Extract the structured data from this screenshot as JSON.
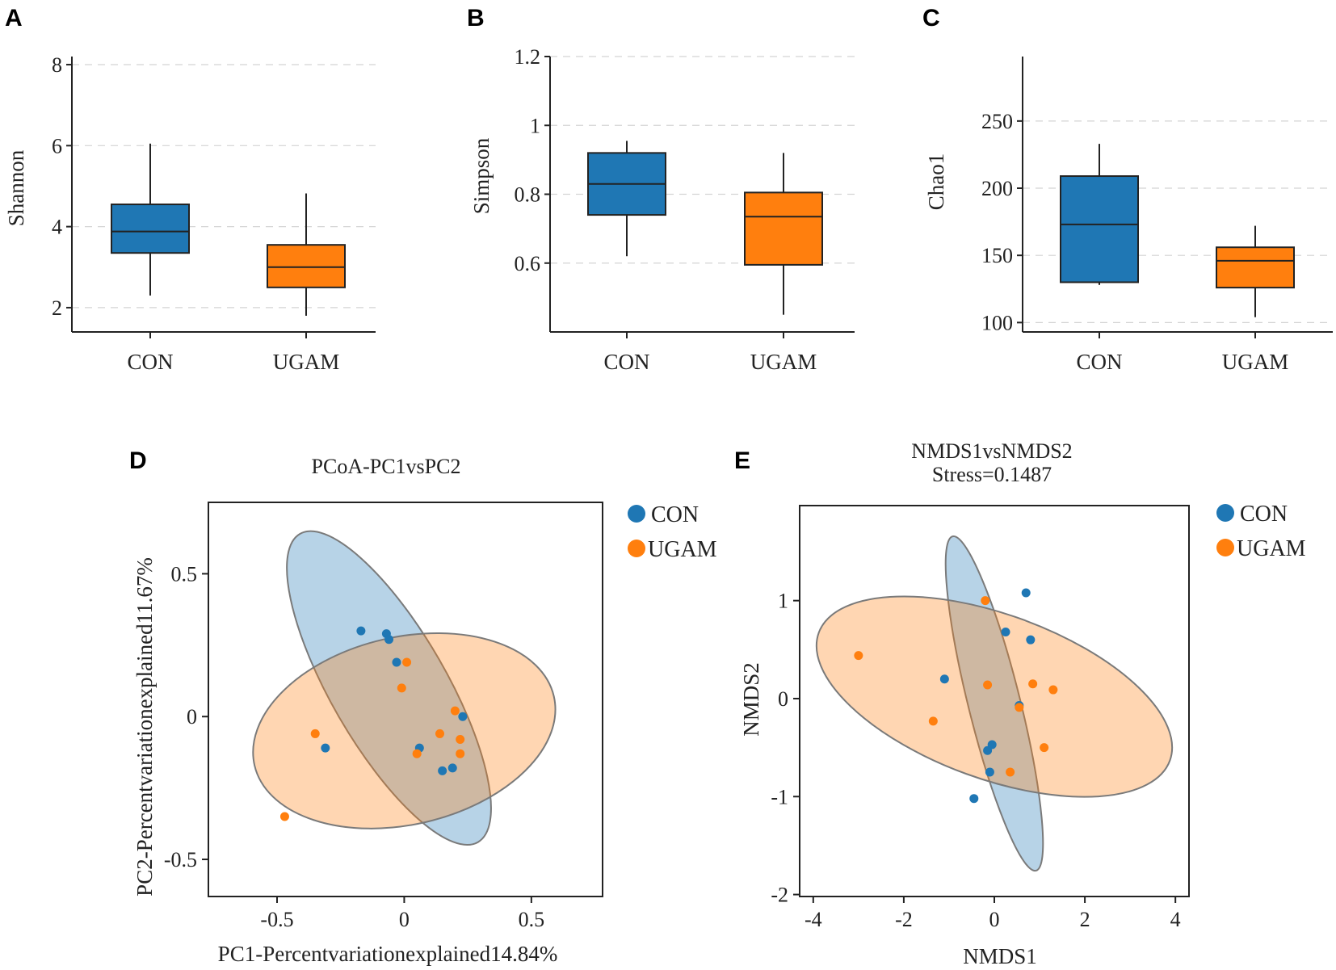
{
  "colors": {
    "con": "#1f77b4",
    "ugam": "#ff7f0e",
    "axis": "#222222",
    "grid": "#d4d4d4"
  },
  "chart_data": [
    {
      "panel": "A",
      "type": "box",
      "ylabel": "Shannon",
      "categories": [
        "CON",
        "UGAM"
      ],
      "ylim": [
        1.4,
        8.2
      ],
      "yticks": [
        2,
        4,
        6,
        8
      ],
      "boxes": [
        {
          "group": "CON",
          "min": 2.3,
          "q1": 3.35,
          "median": 3.88,
          "q3": 4.55,
          "max": 6.05
        },
        {
          "group": "UGAM",
          "min": 1.8,
          "q1": 2.5,
          "median": 3.0,
          "q3": 3.55,
          "max": 4.82
        }
      ]
    },
    {
      "panel": "B",
      "type": "box",
      "ylabel": "Simpson",
      "categories": [
        "CON",
        "UGAM"
      ],
      "ylim": [
        0.4,
        1.2
      ],
      "yticks": [
        0.6,
        0.8,
        1,
        1.2
      ],
      "boxes": [
        {
          "group": "CON",
          "min": 0.62,
          "q1": 0.74,
          "median": 0.83,
          "q3": 0.92,
          "max": 0.955
        },
        {
          "group": "UGAM",
          "min": 0.45,
          "q1": 0.595,
          "median": 0.735,
          "q3": 0.805,
          "max": 0.92
        }
      ]
    },
    {
      "panel": "C",
      "type": "box",
      "ylabel": "Chao1",
      "categories": [
        "CON",
        "UGAM"
      ],
      "ylim": [
        93,
        298
      ],
      "yticks": [
        100,
        150,
        200,
        250
      ],
      "boxes": [
        {
          "group": "CON",
          "min": 128,
          "q1": 130,
          "median": 173,
          "q3": 209,
          "max": 233
        },
        {
          "group": "UGAM",
          "min": 104,
          "q1": 126,
          "median": 146,
          "q3": 156,
          "max": 172
        }
      ]
    },
    {
      "panel": "D",
      "type": "scatter",
      "title": "PCoA-PC1vsPC2",
      "xlabel": "PC1-Percentvariationexplained14.84%",
      "ylabel": "PC2-Percentvariationexplained11.67%",
      "xlim": [
        -0.77,
        0.78
      ],
      "ylim": [
        -0.63,
        0.75
      ],
      "xticks": [
        -0.5,
        0,
        0.5
      ],
      "yticks": [
        -0.5,
        0,
        0.5
      ],
      "xtick_labels": [
        "-0.5",
        "0",
        "0.5"
      ],
      "ytick_labels": [
        "-0.5",
        "0",
        "0.5"
      ],
      "legend": [
        "CON",
        "UGAM"
      ],
      "ellipses": [
        {
          "group": "CON",
          "cx": -0.06,
          "cy": 0.1,
          "rx": 0.64,
          "ry": 0.22,
          "angle_deg": -60
        },
        {
          "group": "UGAM",
          "cx": 0.0,
          "cy": -0.05,
          "rx": 0.6,
          "ry": 0.33,
          "angle_deg": 13
        }
      ],
      "series": [
        {
          "name": "CON",
          "points": [
            [
              -0.17,
              0.3
            ],
            [
              -0.07,
              0.29
            ],
            [
              -0.06,
              0.27
            ],
            [
              -0.03,
              0.19
            ],
            [
              0.23,
              0.0
            ],
            [
              -0.31,
              -0.11
            ],
            [
              0.06,
              -0.11
            ],
            [
              0.15,
              -0.19
            ],
            [
              0.19,
              -0.18
            ]
          ]
        },
        {
          "name": "UGAM",
          "points": [
            [
              0.01,
              0.19
            ],
            [
              -0.01,
              0.1
            ],
            [
              0.2,
              0.02
            ],
            [
              0.14,
              -0.06
            ],
            [
              0.22,
              -0.08
            ],
            [
              -0.35,
              -0.06
            ],
            [
              0.05,
              -0.13
            ],
            [
              0.22,
              -0.13
            ],
            [
              -0.47,
              -0.35
            ]
          ]
        }
      ]
    },
    {
      "panel": "E",
      "type": "scatter",
      "title": "NMDS1vsNMDS2",
      "subtitle": "Stress=0.1487",
      "xlabel": "NMDS1",
      "ylabel": "NMDS2",
      "xlim": [
        -4.3,
        4.3
      ],
      "ylim": [
        -2.02,
        1.97
      ],
      "xticks": [
        -4,
        -2,
        0,
        2,
        4
      ],
      "yticks": [
        -2,
        -1,
        0,
        1
      ],
      "xtick_labels": [
        "-4",
        "-2",
        "0",
        "2",
        "4"
      ],
      "ytick_labels": [
        "-2",
        "-1",
        "0",
        "1"
      ],
      "legend": [
        "CON",
        "UGAM"
      ],
      "ellipses": [
        {
          "group": "CON",
          "cx": 0.0,
          "cy": -0.05,
          "rx": 1.8,
          "ry": 0.52,
          "angle_deg": -76
        },
        {
          "group": "UGAM",
          "cx": 0.0,
          "cy": 0.02,
          "rx": 3.45,
          "ry": 0.88,
          "angle_deg": -20
        }
      ],
      "series": [
        {
          "name": "CON",
          "points": [
            [
              0.7,
              1.08
            ],
            [
              0.25,
              0.68
            ],
            [
              0.8,
              0.6
            ],
            [
              -1.1,
              0.2
            ],
            [
              0.55,
              -0.07
            ],
            [
              -0.15,
              -0.53
            ],
            [
              -0.05,
              -0.47
            ],
            [
              -0.1,
              -0.75
            ],
            [
              -0.45,
              -1.02
            ]
          ]
        },
        {
          "name": "UGAM",
          "points": [
            [
              -0.2,
              1.0
            ],
            [
              -3.0,
              0.44
            ],
            [
              -0.15,
              0.14
            ],
            [
              0.85,
              0.15
            ],
            [
              1.3,
              0.09
            ],
            [
              0.55,
              -0.09
            ],
            [
              -1.35,
              -0.23
            ],
            [
              1.1,
              -0.5
            ],
            [
              0.35,
              -0.75
            ]
          ]
        }
      ]
    }
  ]
}
